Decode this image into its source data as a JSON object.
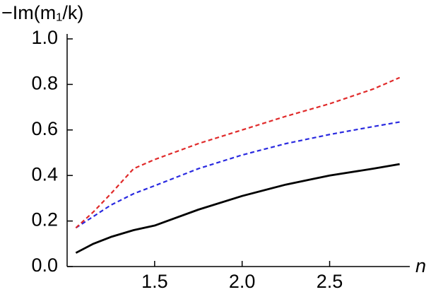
{
  "chart_data": {
    "type": "line",
    "y_label": "−Im(m₁/k)",
    "x_label": "n",
    "x": [
      1.05,
      1.15,
      1.25,
      1.38,
      1.5,
      1.75,
      2.0,
      2.25,
      2.5,
      2.75,
      2.9
    ],
    "series": [
      {
        "color": "#000000",
        "dash": false,
        "values": [
          0.06,
          0.1,
          0.13,
          0.16,
          0.18,
          0.25,
          0.31,
          0.36,
          0.4,
          0.43,
          0.45
        ]
      },
      {
        "color": "#2a2ae0",
        "dash": true,
        "values": [
          0.17,
          0.22,
          0.27,
          0.32,
          0.355,
          0.43,
          0.49,
          0.54,
          0.58,
          0.615,
          0.635
        ]
      },
      {
        "color": "#e02a2a",
        "dash": true,
        "values": [
          0.17,
          0.24,
          0.32,
          0.43,
          0.47,
          0.54,
          0.6,
          0.66,
          0.715,
          0.78,
          0.83
        ]
      }
    ],
    "xlim": [
      1.0,
      2.95
    ],
    "ylim": [
      0,
      1
    ],
    "xticks": [
      1.5,
      {
        "value": 2,
        "label": "2.0"
      },
      2.5
    ],
    "yticks": [
      {
        "value": 0,
        "label": "0.0"
      },
      0.2,
      0.4,
      0.6,
      0.8,
      {
        "value": 1,
        "label": "1.0"
      }
    ]
  }
}
